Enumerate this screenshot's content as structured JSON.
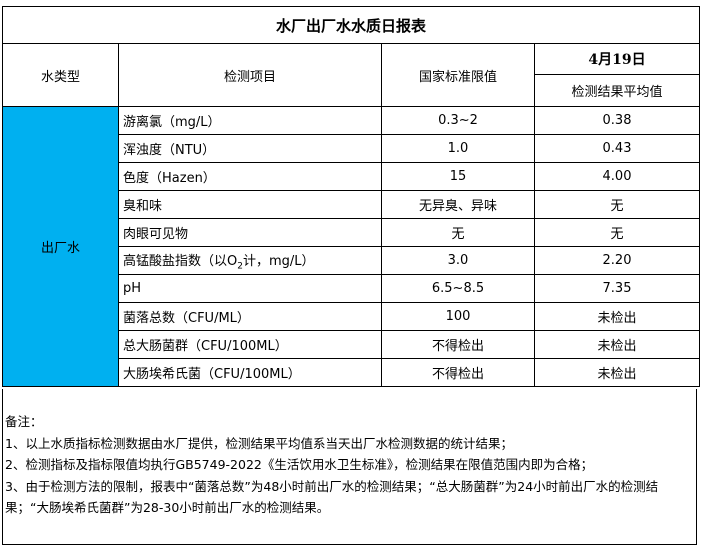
{
  "title": "水厂出厂水水质日报表",
  "headers": {
    "type": "水类型",
    "item": "检测项目",
    "standard": "国家标准限值",
    "date": "4月19日",
    "result": "检测结果平均值"
  },
  "water_type": "出厂水",
  "water_type_color": "#00b0f0",
  "rows": [
    {
      "item": "游离氯（mg/L）",
      "standard": "0.3~2",
      "result": "0.38"
    },
    {
      "item": "浑浊度（NTU）",
      "standard": "1.0",
      "result": "0.43"
    },
    {
      "item": "色度（Hazen）",
      "standard": "15",
      "result": "4.00"
    },
    {
      "item": "臭和味",
      "standard": "无异臭、异味",
      "result": "无"
    },
    {
      "item": "肉眼可见物",
      "standard": "无",
      "result": "无"
    },
    {
      "item_pre": "高锰酸盐指数（以O",
      "item_sub": "2",
      "item_post": "计，mg/L）",
      "standard": "3.0",
      "result": "2.20"
    },
    {
      "item": "pH",
      "standard": "6.5~8.5",
      "result": "7.35"
    },
    {
      "item": "菌落总数（CFU/ML）",
      "standard": "100",
      "result": "未检出"
    },
    {
      "item": "总大肠菌群（CFU/100ML）",
      "standard": "不得检出",
      "result": "未检出"
    },
    {
      "item": "大肠埃希氏菌（CFU/100ML）",
      "standard": "不得检出",
      "result": "未检出"
    }
  ],
  "notes": {
    "label": "备注：",
    "lines": [
      "1、以上水质指标检测数据由水厂提供，检测结果平均值系当天出厂水检测数据的统计结果；",
      "2、检测指标及指标限值均执行GB5749-2022《生活饮用水卫生标准》，检测结果在限值范围内即为合格；",
      "3、由于检测方法的限制，报表中“菌落总数”为48小时前出厂水的检测结果；“总大肠菌群”为24小时前出厂水的检测结果；“大肠埃希氏菌群”为28-30小时前出厂水的检测结果。"
    ]
  }
}
